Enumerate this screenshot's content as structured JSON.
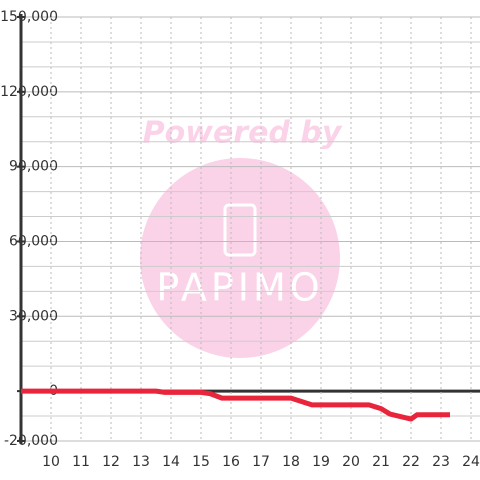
{
  "chart_data": {
    "type": "line",
    "watermark": [
      "Powered by",
      "PAPIMO"
    ],
    "x": [
      9,
      13.5,
      13.8,
      15,
      15.3,
      15.7,
      18,
      18.7,
      20.6,
      21,
      21.3,
      22,
      22.2,
      23.3
    ],
    "series": [
      {
        "color": "#e8253a",
        "values": [
          0,
          0,
          -500,
          -500,
          -1000,
          -2800,
          -2800,
          -5500,
          -5500,
          -7000,
          -9200,
          -11200,
          -9500,
          -9500
        ]
      }
    ],
    "xlim": [
      9,
      24.3
    ],
    "xticks": [
      10,
      11,
      12,
      13,
      14,
      15,
      16,
      17,
      18,
      19,
      20,
      21,
      22,
      23,
      24
    ],
    "ylim": [
      -20000,
      150000
    ],
    "yticks": [
      {
        "value": -20000,
        "label": "-20,000"
      },
      0,
      {
        "value": 30000,
        "label": "30,000"
      },
      {
        "value": 60000,
        "label": "60,000"
      },
      {
        "value": 90000,
        "label": "90,000"
      },
      {
        "value": 120000,
        "label": "120,000"
      },
      {
        "value": 150000,
        "label": "150,000"
      }
    ],
    "yminor": [
      -10000,
      10000,
      20000,
      40000,
      50000,
      70000,
      80000,
      100000,
      110000,
      130000,
      140000
    ],
    "grid": true
  }
}
